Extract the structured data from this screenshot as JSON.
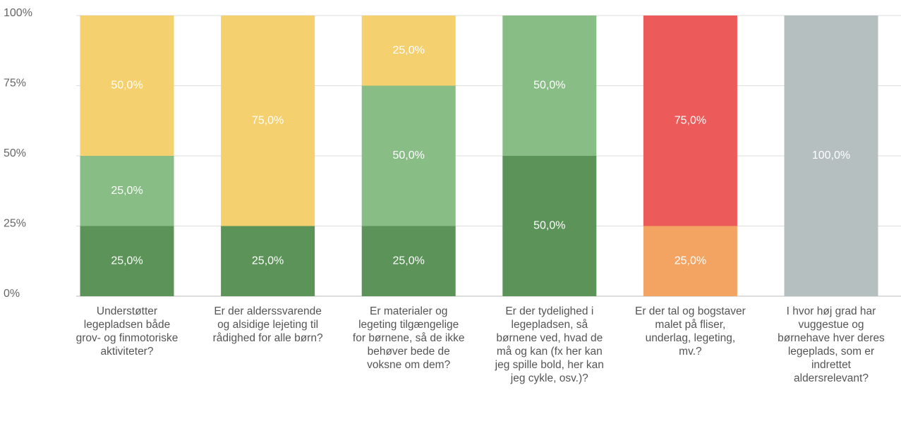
{
  "chart_data": {
    "type": "stacked_bar",
    "categories": [
      "Understøtter legepladsen både grov- og finmotoriske aktiviteter?",
      "Er der alderssvarende og alsidige lejeting til rådighed for alle børn?",
      "Er materialer og legeting tilgængelige for børnene, så de ikke behøver bede de voksne om dem?",
      "Er der tydelighed i legepladsen, så børnene ved, hvad de må og kan (fx her kan jeg spille bold, her kan jeg cykle, osv.)?",
      "Er der tal og bogstaver malet på fliser, underlag, legeting, mv.?",
      "I hvor høj grad har vuggestue og børnehave hver deres legeplads, som er indrettet aldersrelevant?"
    ],
    "series": [
      {
        "color": "#5b9358",
        "values": [
          25,
          25,
          25,
          50,
          null,
          null
        ],
        "value_labels": [
          "25,0%",
          "25,0%",
          "25,0%",
          "50,0%",
          null,
          null
        ]
      },
      {
        "color": "#88bd86",
        "values": [
          25,
          null,
          50,
          50,
          null,
          null
        ],
        "value_labels": [
          "25,0%",
          null,
          "50,0%",
          "50,0%",
          null,
          null
        ]
      },
      {
        "color": "#f5d06e",
        "values": [
          50,
          75,
          25,
          null,
          null,
          null
        ],
        "value_labels": [
          "50,0%",
          "75,0%",
          "25,0%",
          null,
          null,
          null
        ]
      },
      {
        "color": "#f3a462",
        "values": [
          null,
          null,
          null,
          null,
          25,
          null
        ],
        "value_labels": [
          null,
          null,
          null,
          null,
          "25,0%",
          null
        ]
      },
      {
        "color": "#ec5a5a",
        "values": [
          null,
          null,
          null,
          null,
          75,
          null
        ],
        "value_labels": [
          null,
          null,
          null,
          null,
          "75,0%",
          null
        ]
      },
      {
        "color": "#b5bfc0",
        "values": [
          null,
          null,
          null,
          null,
          null,
          100
        ],
        "value_labels": [
          null,
          null,
          null,
          null,
          null,
          "100,0%"
        ]
      }
    ],
    "ylim": [
      0,
      100
    ],
    "yticks": [
      {
        "value": 0,
        "label": "0%"
      },
      {
        "value": 25,
        "label": "25%"
      },
      {
        "value": 50,
        "label": "50%"
      },
      {
        "value": 75,
        "label": "75%"
      },
      {
        "value": 100,
        "label": "100%"
      }
    ],
    "grid": true
  }
}
